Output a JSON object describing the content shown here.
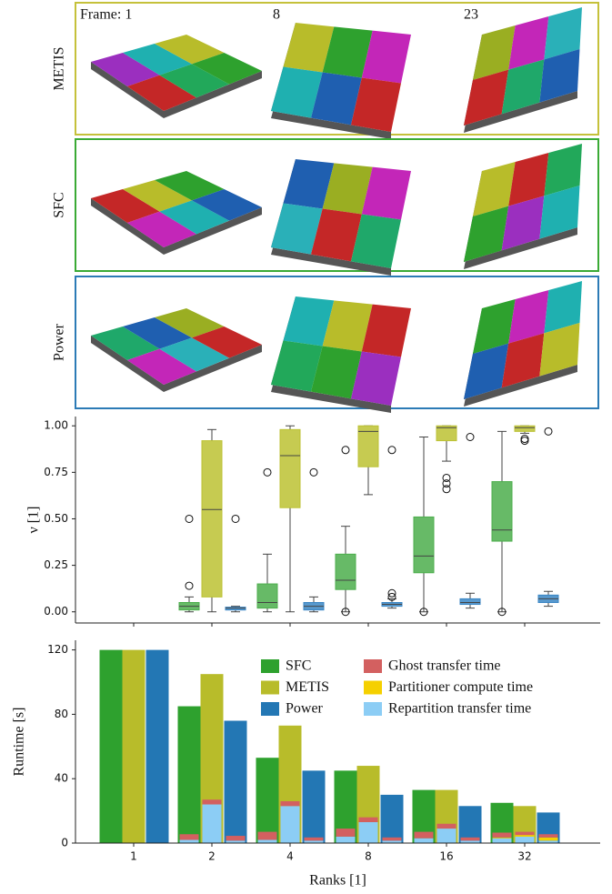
{
  "panels": [
    {
      "label": "METIS",
      "color": "#c5c13a"
    },
    {
      "label": "SFC",
      "color": "#3aaa35"
    },
    {
      "label": "Power",
      "color": "#2c7bb6"
    }
  ],
  "frames": [
    "Frame: 1",
    "8",
    "23"
  ],
  "chart_data": [
    {
      "type": "box",
      "ylabel": "ν [1]",
      "categories": [
        null,
        null,
        null,
        null,
        null,
        null
      ],
      "ylim": [
        -0.06,
        1.05
      ],
      "yticks": [
        {
          "value": 0,
          "label": "0.00"
        },
        {
          "value": 0.25,
          "label": "0.25"
        },
        {
          "value": 0.5,
          "label": "0.50"
        },
        {
          "value": 0.75,
          "label": "0.75"
        },
        {
          "value": 1,
          "label": "1.00"
        }
      ],
      "series": [
        {
          "color": "#4cae4c",
          "boxes": [
            null,
            {
              "whislo": 0,
              "q1": 0.01,
              "med": 0.03,
              "q3": 0.05,
              "whishi": 0.08,
              "fliers": [
                0.14,
                0.5
              ]
            },
            {
              "whislo": 0,
              "q1": 0.02,
              "med": 0.05,
              "q3": 0.15,
              "whishi": 0.31,
              "fliers": [
                0.75
              ]
            },
            {
              "whislo": 0,
              "q1": 0.12,
              "med": 0.17,
              "q3": 0.31,
              "whishi": 0.46,
              "fliers": [
                0.87,
                0
              ]
            },
            {
              "whislo": 0,
              "q1": 0.21,
              "med": 0.3,
              "q3": 0.51,
              "whishi": 0.94,
              "fliers": [
                0
              ]
            },
            {
              "whislo": 0,
              "q1": 0.38,
              "med": 0.44,
              "q3": 0.7,
              "whishi": 0.97,
              "fliers": [
                0
              ]
            }
          ]
        },
        {
          "color": "#bcc233",
          "boxes": [
            null,
            {
              "whislo": 0,
              "q1": 0.08,
              "med": 0.55,
              "q3": 0.92,
              "whishi": 0.98,
              "fliers": []
            },
            {
              "whislo": 0,
              "q1": 0.56,
              "med": 0.84,
              "q3": 0.98,
              "whishi": 1.0,
              "fliers": []
            },
            {
              "whislo": 0.63,
              "q1": 0.78,
              "med": 0.97,
              "q3": 1.0,
              "whishi": 1.0,
              "fliers": []
            },
            {
              "whislo": 0.81,
              "q1": 0.92,
              "med": 0.99,
              "q3": 1.0,
              "whishi": 1.0,
              "fliers": [
                0.72,
                0.69,
                0.66
              ]
            },
            {
              "whislo": 0.96,
              "q1": 0.97,
              "med": 0.99,
              "q3": 1.0,
              "whishi": 1.0,
              "fliers": [
                0.93,
                0.92
              ]
            }
          ]
        },
        {
          "color": "#3a86c4",
          "boxes": [
            null,
            {
              "whislo": 0,
              "q1": 0.01,
              "med": 0.02,
              "q3": 0.025,
              "whishi": 0.03,
              "fliers": [
                0.5
              ]
            },
            {
              "whislo": 0,
              "q1": 0.01,
              "med": 0.03,
              "q3": 0.05,
              "whishi": 0.08,
              "fliers": [
                0.75
              ]
            },
            {
              "whislo": 0.02,
              "q1": 0.03,
              "med": 0.04,
              "q3": 0.05,
              "whishi": 0.07,
              "fliers": [
                0.08,
                0.1,
                0.87
              ]
            },
            {
              "whislo": 0.02,
              "q1": 0.04,
              "med": 0.05,
              "q3": 0.07,
              "whishi": 0.1,
              "fliers": [
                0.94
              ]
            },
            {
              "whislo": 0.03,
              "q1": 0.05,
              "med": 0.07,
              "q3": 0.09,
              "whishi": 0.11,
              "fliers": [
                0.97
              ]
            }
          ]
        }
      ]
    },
    {
      "type": "bar",
      "ylabel": "Runtime [s]",
      "xlabel": "Ranks [1]",
      "categories": [
        "1",
        "2",
        "4",
        "8",
        "16",
        "32"
      ],
      "ylim": [
        0,
        126
      ],
      "yticks": [
        0,
        40,
        80,
        120
      ],
      "series": [
        {
          "name": "SFC",
          "color": "#2ea12e",
          "values": [
            120,
            85,
            53,
            45,
            33,
            25
          ]
        },
        {
          "name": "METIS",
          "color": "#b8bc2a",
          "values": [
            120,
            105,
            73,
            48,
            33,
            23
          ]
        },
        {
          "name": "Power",
          "color": "#2377b4",
          "values": [
            120,
            76,
            45,
            30,
            23,
            19
          ]
        }
      ],
      "components": [
        {
          "name": "Ghost transfer time",
          "color": "#d36060",
          "values": [
            [
              0,
              3.5,
              5,
              5,
              4,
              3
            ],
            [
              0,
              3,
              3,
              3,
              3,
              2
            ],
            [
              0,
              3,
              2,
              2,
              2,
              2
            ]
          ]
        },
        {
          "name": "Partitioner compute time",
          "color": "#f5d000",
          "values": [
            [
              0,
              0,
              0,
              0,
              0,
              0.5
            ],
            [
              0,
              0,
              0,
              0,
              0,
              1
            ],
            [
              0,
              0,
              0,
              0,
              0,
              2
            ]
          ]
        },
        {
          "name": "Repartition transfer time",
          "color": "#8ccdf5",
          "values": [
            [
              0,
              2,
              2,
              4,
              3,
              3
            ],
            [
              0,
              24,
              23,
              13,
              9,
              4
            ],
            [
              0,
              1.5,
              1.5,
              1.5,
              1.5,
              1.5
            ]
          ]
        }
      ]
    }
  ]
}
